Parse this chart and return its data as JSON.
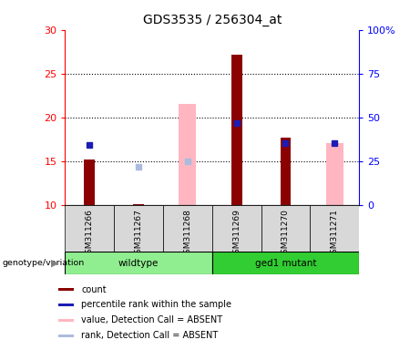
{
  "title": "GDS3535 / 256304_at",
  "samples": [
    "GSM311266",
    "GSM311267",
    "GSM311268",
    "GSM311269",
    "GSM311270",
    "GSM311271"
  ],
  "ylim_left": [
    10,
    30
  ],
  "ylim_right": [
    0,
    100
  ],
  "yticks_left": [
    10,
    15,
    20,
    25,
    30
  ],
  "yticks_right": [
    0,
    25,
    50,
    75,
    100
  ],
  "ytick_labels_right": [
    "0",
    "25",
    "50",
    "75",
    "100%"
  ],
  "count_bars": [
    15.15,
    10.1,
    null,
    27.1,
    17.7,
    null
  ],
  "percentile_rank": [
    16.8,
    null,
    null,
    19.3,
    17.0,
    17.0
  ],
  "absent_value_bars": [
    null,
    null,
    21.5,
    null,
    null,
    17.0
  ],
  "absent_rank_squares": [
    null,
    14.3,
    15.0,
    null,
    null,
    null
  ],
  "bar_bottom": 10,
  "color_count": "#8B0000",
  "color_percentile": "#1C1CB4",
  "color_absent_value": "#FFB6C1",
  "color_absent_rank": "#AABBDD",
  "color_wildtype": "#90EE90",
  "color_mutant": "#32CD32",
  "bg_gray": "#D8D8D8"
}
